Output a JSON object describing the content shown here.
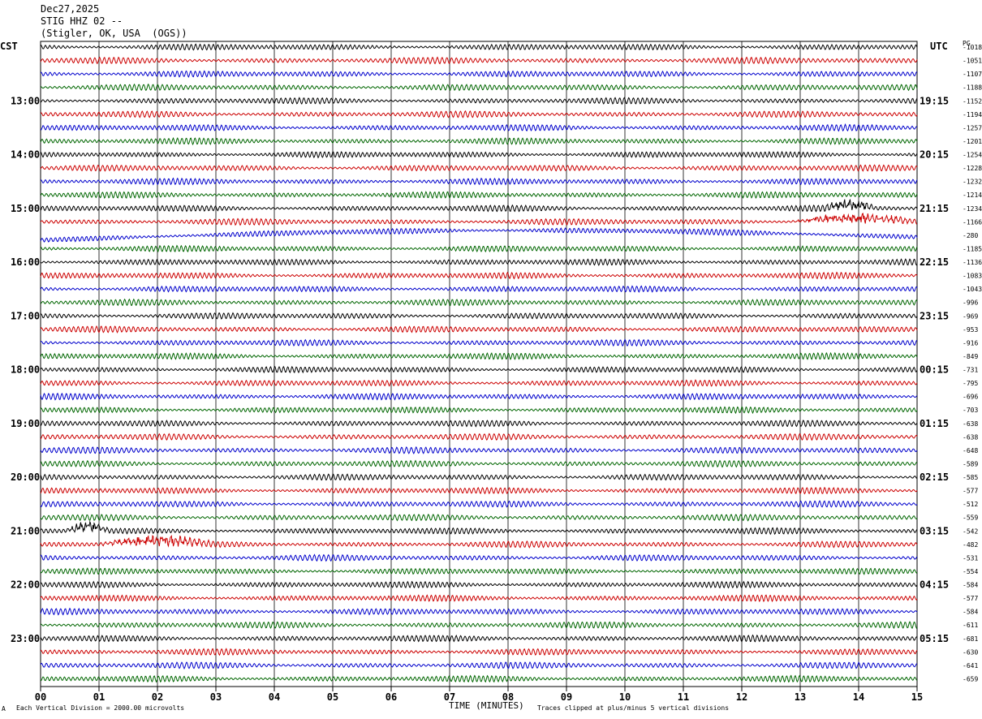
{
  "header": {
    "date": "Dec27,2025",
    "station": "STIG HHZ 02 --",
    "location": "(Stigler, OK, USA  (OGS))"
  },
  "left_label": "CST",
  "right_label": "UTC",
  "corner_label": "PG",
  "footer": {
    "scale_note": "Each Vertical Division = 2000.00 microvolts",
    "xlabel": "TIME (MINUTES)",
    "clip_note": "Traces clipped at plus/minus 5 vertical divisions",
    "corner_mark": "A"
  },
  "chart_data": {
    "type": "line",
    "x_ticks": [
      "00",
      "01",
      "02",
      "03",
      "04",
      "05",
      "06",
      "07",
      "08",
      "09",
      "10",
      "11",
      "12",
      "13",
      "14",
      "15"
    ],
    "xlim": [
      0,
      15
    ],
    "left_hour_labels": [
      "13:00",
      "14:00",
      "15:00",
      "16:00",
      "17:00",
      "18:00",
      "19:00",
      "20:00",
      "21:00",
      "22:00",
      "23:00"
    ],
    "right_hour_labels": [
      "19:15",
      "20:15",
      "21:15",
      "22:15",
      "23:15",
      "00:15",
      "01:15",
      "02:15",
      "03:15",
      "04:15",
      "05:15"
    ],
    "trace_colors": [
      "#000000",
      "#cc0000",
      "#0000cc",
      "#006600"
    ],
    "trace_offsets": [
      "-1018",
      "-1051",
      "-1107",
      "-1188",
      "-1152",
      "-1194",
      "-1257",
      "-1201",
      "-1254",
      "-1228",
      "-1232",
      "-1214",
      "-1234",
      "-1166",
      "-280",
      "-1185",
      "-1136",
      "-1083",
      "-1043",
      "-996",
      "-969",
      "-953",
      "-916",
      "-849",
      "-731",
      "-795",
      "-696",
      "-703",
      "-638",
      "-638",
      "-648",
      "-589",
      "-585",
      "-577",
      "-512",
      "-559",
      "-542",
      "-482",
      "-531",
      "-554",
      "-584",
      "-577",
      "-584",
      "-611",
      "-681",
      "-630",
      "-641",
      "-659"
    ],
    "trace_count": 48,
    "trace_interval_minutes": 15,
    "events": [
      {
        "trace": 12,
        "start_minute": 13.4,
        "end_minute": 14.3,
        "note": "burst"
      },
      {
        "trace": 13,
        "start_minute": 12.8,
        "end_minute": 15.0,
        "note": "burst"
      },
      {
        "trace": 14,
        "start_minute": 0.0,
        "end_minute": 15.0,
        "note": "drift"
      },
      {
        "trace": 36,
        "start_minute": 0.4,
        "end_minute": 1.2,
        "note": "burst"
      },
      {
        "trace": 37,
        "start_minute": 1.0,
        "end_minute": 3.0,
        "note": "burst"
      }
    ]
  }
}
